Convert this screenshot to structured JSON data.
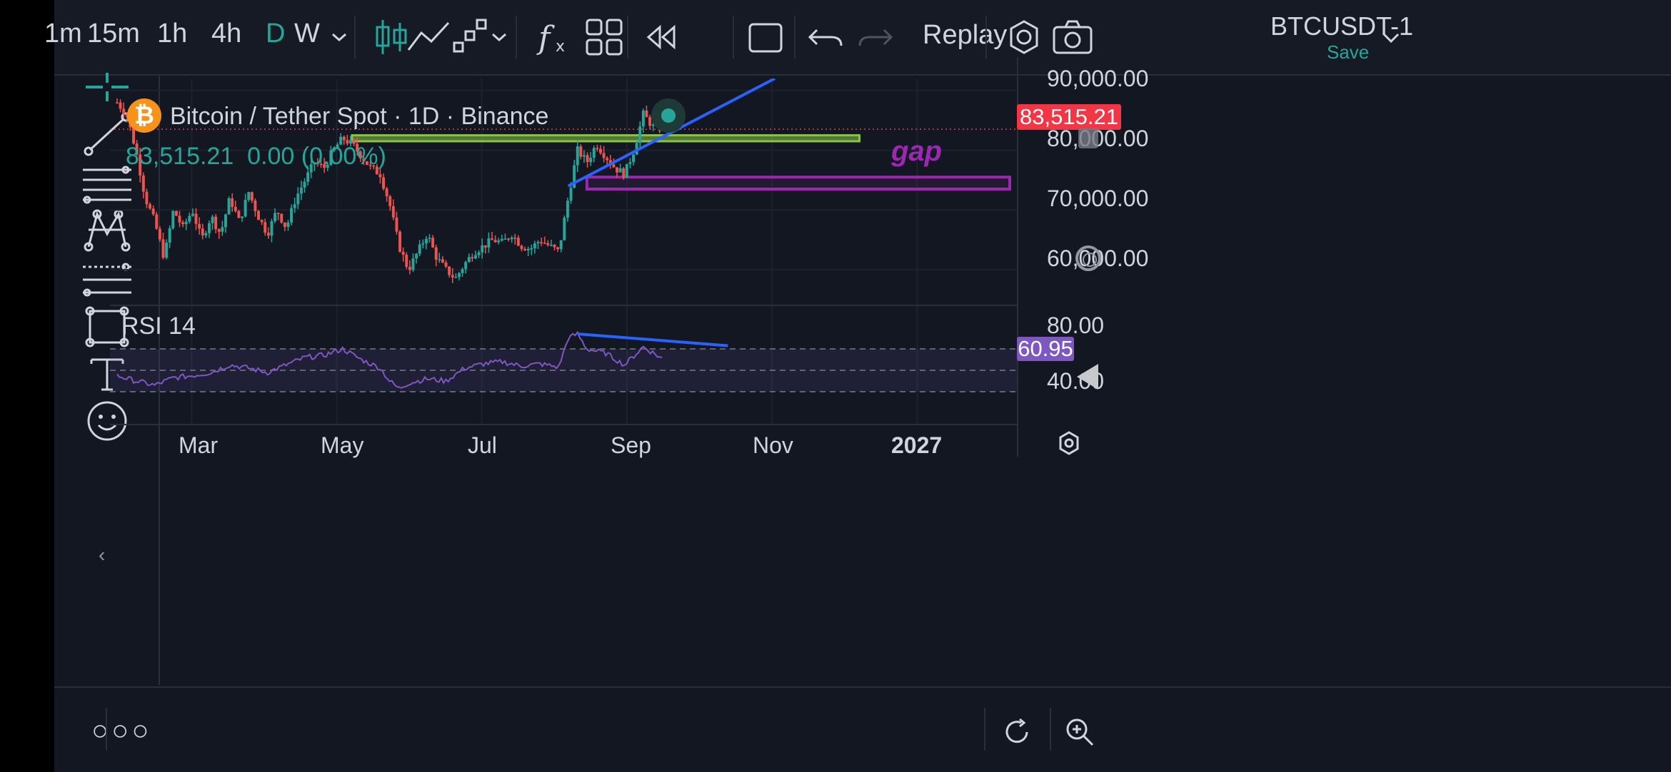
{
  "toolbar": {
    "timeframes": [
      {
        "label": "1m",
        "active": false
      },
      {
        "label": "15m",
        "active": false
      },
      {
        "label": "1h",
        "active": false
      },
      {
        "label": "4h",
        "active": false
      },
      {
        "label": "D",
        "active": true
      },
      {
        "label": "W",
        "active": false
      }
    ],
    "replay_label": "Replay",
    "symbol": "BTCUSDT-1",
    "save_label": "Save",
    "icons": [
      "chevron-down-icon",
      "candles-icon",
      "line-chart-icon",
      "step-chart-icon",
      "indicators-icon",
      "layout-icon",
      "replay-icon",
      "rectangle-icon",
      "undo-icon",
      "redo-icon",
      "settings-icon",
      "camera-icon"
    ]
  },
  "left_toolbar": {
    "icons": [
      "crosshair-icon",
      "trendline-icon",
      "fib-lines-icon",
      "pattern-icon",
      "forecast-icon",
      "rectangle-icon",
      "text-icon",
      "emoji-icon"
    ]
  },
  "legend": {
    "title": "Bitcoin / Tether Spot · 1D · Binance",
    "last": "83,515.21",
    "change": "0.00 (0.00%)"
  },
  "price_axis": {
    "labels": [
      "90,000.00",
      "80,000.00",
      "70,000.00",
      "60,000.00"
    ],
    "last_price": "83,515.21"
  },
  "rsi": {
    "label": "RSI 14",
    "value": "60.95",
    "axis_labels": [
      "80.00",
      "40.00"
    ]
  },
  "annotations": {
    "gap": "gap"
  },
  "time_axis": {
    "labels": [
      "Mar",
      "May",
      "Jul",
      "Sep",
      "Nov",
      "2027"
    ]
  },
  "chart_data": {
    "type": "candlestick",
    "title": "Bitcoin / Tether Spot · 1D · Binance",
    "ylim": [
      55000,
      92000
    ],
    "x_labels": [
      "Mar",
      "May",
      "Jul",
      "Sep",
      "Nov",
      "2027"
    ],
    "price_path": [
      [
        0,
        88000
      ],
      [
        2,
        86000
      ],
      [
        4,
        80000
      ],
      [
        6,
        72000
      ],
      [
        8,
        68000
      ],
      [
        10,
        62000
      ],
      [
        12,
        70000
      ],
      [
        14,
        67000
      ],
      [
        16,
        70000
      ],
      [
        18,
        65000
      ],
      [
        20,
        69000
      ],
      [
        22,
        66000
      ],
      [
        24,
        72000
      ],
      [
        26,
        68000
      ],
      [
        28,
        73000
      ],
      [
        30,
        69000
      ],
      [
        32,
        66000
      ],
      [
        34,
        70000
      ],
      [
        36,
        67000
      ],
      [
        38,
        72000
      ],
      [
        40,
        75000
      ],
      [
        42,
        78000
      ],
      [
        44,
        77000
      ],
      [
        46,
        80000
      ],
      [
        48,
        82000
      ],
      [
        50,
        81000
      ],
      [
        52,
        79000
      ],
      [
        54,
        77000
      ],
      [
        56,
        76000
      ],
      [
        58,
        71000
      ],
      [
        60,
        64000
      ],
      [
        62,
        60000
      ],
      [
        64,
        63000
      ],
      [
        66,
        66000
      ],
      [
        68,
        62000
      ],
      [
        70,
        60000
      ],
      [
        72,
        58500
      ],
      [
        74,
        61000
      ],
      [
        76,
        63000
      ],
      [
        78,
        64000
      ],
      [
        80,
        65000
      ],
      [
        82,
        64500
      ],
      [
        84,
        66000
      ],
      [
        86,
        64000
      ],
      [
        88,
        63500
      ],
      [
        90,
        65000
      ],
      [
        92,
        64000
      ],
      [
        94,
        63000
      ],
      [
        96,
        72000
      ],
      [
        98,
        80000
      ],
      [
        100,
        78000
      ],
      [
        102,
        81000
      ],
      [
        104,
        79000
      ],
      [
        106,
        77000
      ],
      [
        108,
        76000
      ],
      [
        110,
        80000
      ],
      [
        112,
        86000
      ],
      [
        114,
        84000
      ],
      [
        116,
        83515
      ]
    ],
    "rsi_path": [
      [
        0,
        45
      ],
      [
        4,
        40
      ],
      [
        8,
        36
      ],
      [
        12,
        43
      ],
      [
        16,
        45
      ],
      [
        20,
        48
      ],
      [
        24,
        55
      ],
      [
        28,
        52
      ],
      [
        32,
        48
      ],
      [
        36,
        55
      ],
      [
        40,
        62
      ],
      [
        44,
        64
      ],
      [
        48,
        70
      ],
      [
        52,
        60
      ],
      [
        56,
        52
      ],
      [
        58,
        40
      ],
      [
        60,
        33
      ],
      [
        62,
        38
      ],
      [
        66,
        42
      ],
      [
        70,
        40
      ],
      [
        74,
        52
      ],
      [
        78,
        56
      ],
      [
        82,
        58
      ],
      [
        86,
        54
      ],
      [
        90,
        56
      ],
      [
        94,
        53
      ],
      [
        96,
        80
      ],
      [
        98,
        84
      ],
      [
        100,
        70
      ],
      [
        104,
        66
      ],
      [
        108,
        55
      ],
      [
        112,
        72
      ],
      [
        116,
        61
      ]
    ],
    "rsi_levels": [
      70,
      50,
      30
    ],
    "drawings": {
      "resistance_zone": [
        81500,
        82500
      ],
      "gap_zone": [
        73500,
        75500
      ],
      "trendline_start": [
        73500,
        74000
      ],
      "trendline_end": [
        81500,
        92000
      ]
    },
    "colors": {
      "up": "#26a69a",
      "down": "#ef5350",
      "trendline": "#2962ff",
      "resistance": "#8bc34a",
      "gap": "#9c27b0",
      "rsi": "#7e57c2"
    }
  }
}
